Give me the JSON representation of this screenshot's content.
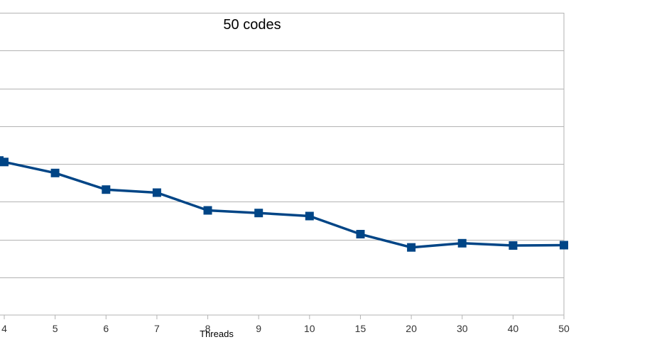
{
  "chart_data": {
    "type": "line",
    "title": "50 codes",
    "xlabel": "Threads",
    "ylabel": "",
    "categories": [
      "4",
      "5",
      "6",
      "7",
      "8",
      "9",
      "10",
      "15",
      "20",
      "30",
      "40",
      "50"
    ],
    "series": [
      {
        "values": [
          4.05,
          3.76,
          3.32,
          3.24,
          2.77,
          2.7,
          2.62,
          2.14,
          1.79,
          1.9,
          1.84,
          1.85
        ]
      }
    ],
    "ylim": [
      0,
      8
    ],
    "grid": true,
    "legend": "none",
    "colors": {
      "series": "#004586",
      "grid": "#b3b3b3"
    }
  }
}
